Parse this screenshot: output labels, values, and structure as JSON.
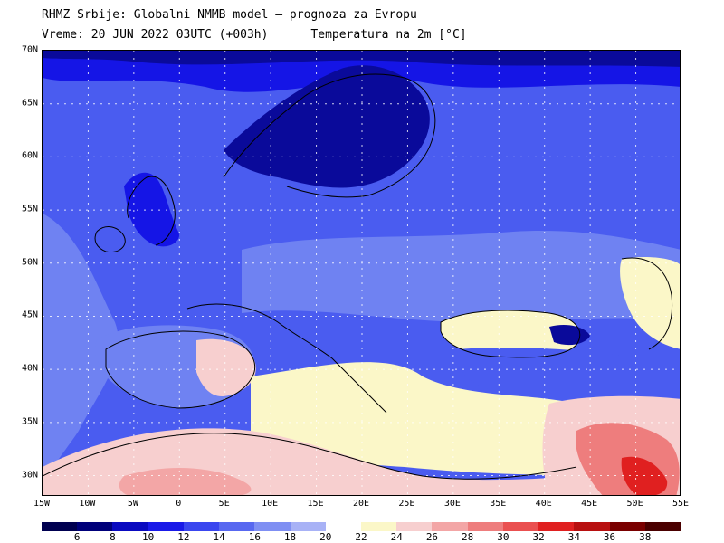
{
  "header": {
    "line1": "RHMZ Srbije: Globalni NMMB model — prognoza za Evropu",
    "line2": "Vreme: 20 JUN 2022 03UTC (+003h)      Temperatura na 2m [°C]"
  },
  "map": {
    "lat_labels": [
      "70N",
      "65N",
      "60N",
      "55N",
      "50N",
      "45N",
      "40N",
      "35N",
      "30N"
    ],
    "lat_values": [
      70,
      65,
      60,
      55,
      50,
      45,
      40,
      35,
      30
    ],
    "lon_labels": [
      "15W",
      "10W",
      "5W",
      "0",
      "5E",
      "10E",
      "15E",
      "20E",
      "25E",
      "30E",
      "35E",
      "40E",
      "45E",
      "50E",
      "55E"
    ],
    "lon_values": [
      -15,
      -10,
      -5,
      0,
      5,
      10,
      15,
      20,
      25,
      30,
      35,
      40,
      45,
      50,
      55
    ],
    "lat_range": [
      28,
      70
    ],
    "lon_range": [
      -15,
      55
    ]
  },
  "legend": {
    "labels": [
      "6",
      "8",
      "10",
      "12",
      "14",
      "16",
      "18",
      "20",
      "22",
      "24",
      "26",
      "28",
      "30",
      "32",
      "34",
      "36",
      "38"
    ],
    "colors": [
      "#000050",
      "#0a0a9a",
      "#1515e6",
      "#2d2df5",
      "#4a5cf0",
      "#6f82f2",
      "#9aa6f5",
      "#c4cbf8",
      "#ffffff",
      "#fbf7c8",
      "#f7cfcf",
      "#f3a6a6",
      "#ee7d7d",
      "#ea5050",
      "#e02020",
      "#b81010",
      "#7a0000"
    ]
  }
}
